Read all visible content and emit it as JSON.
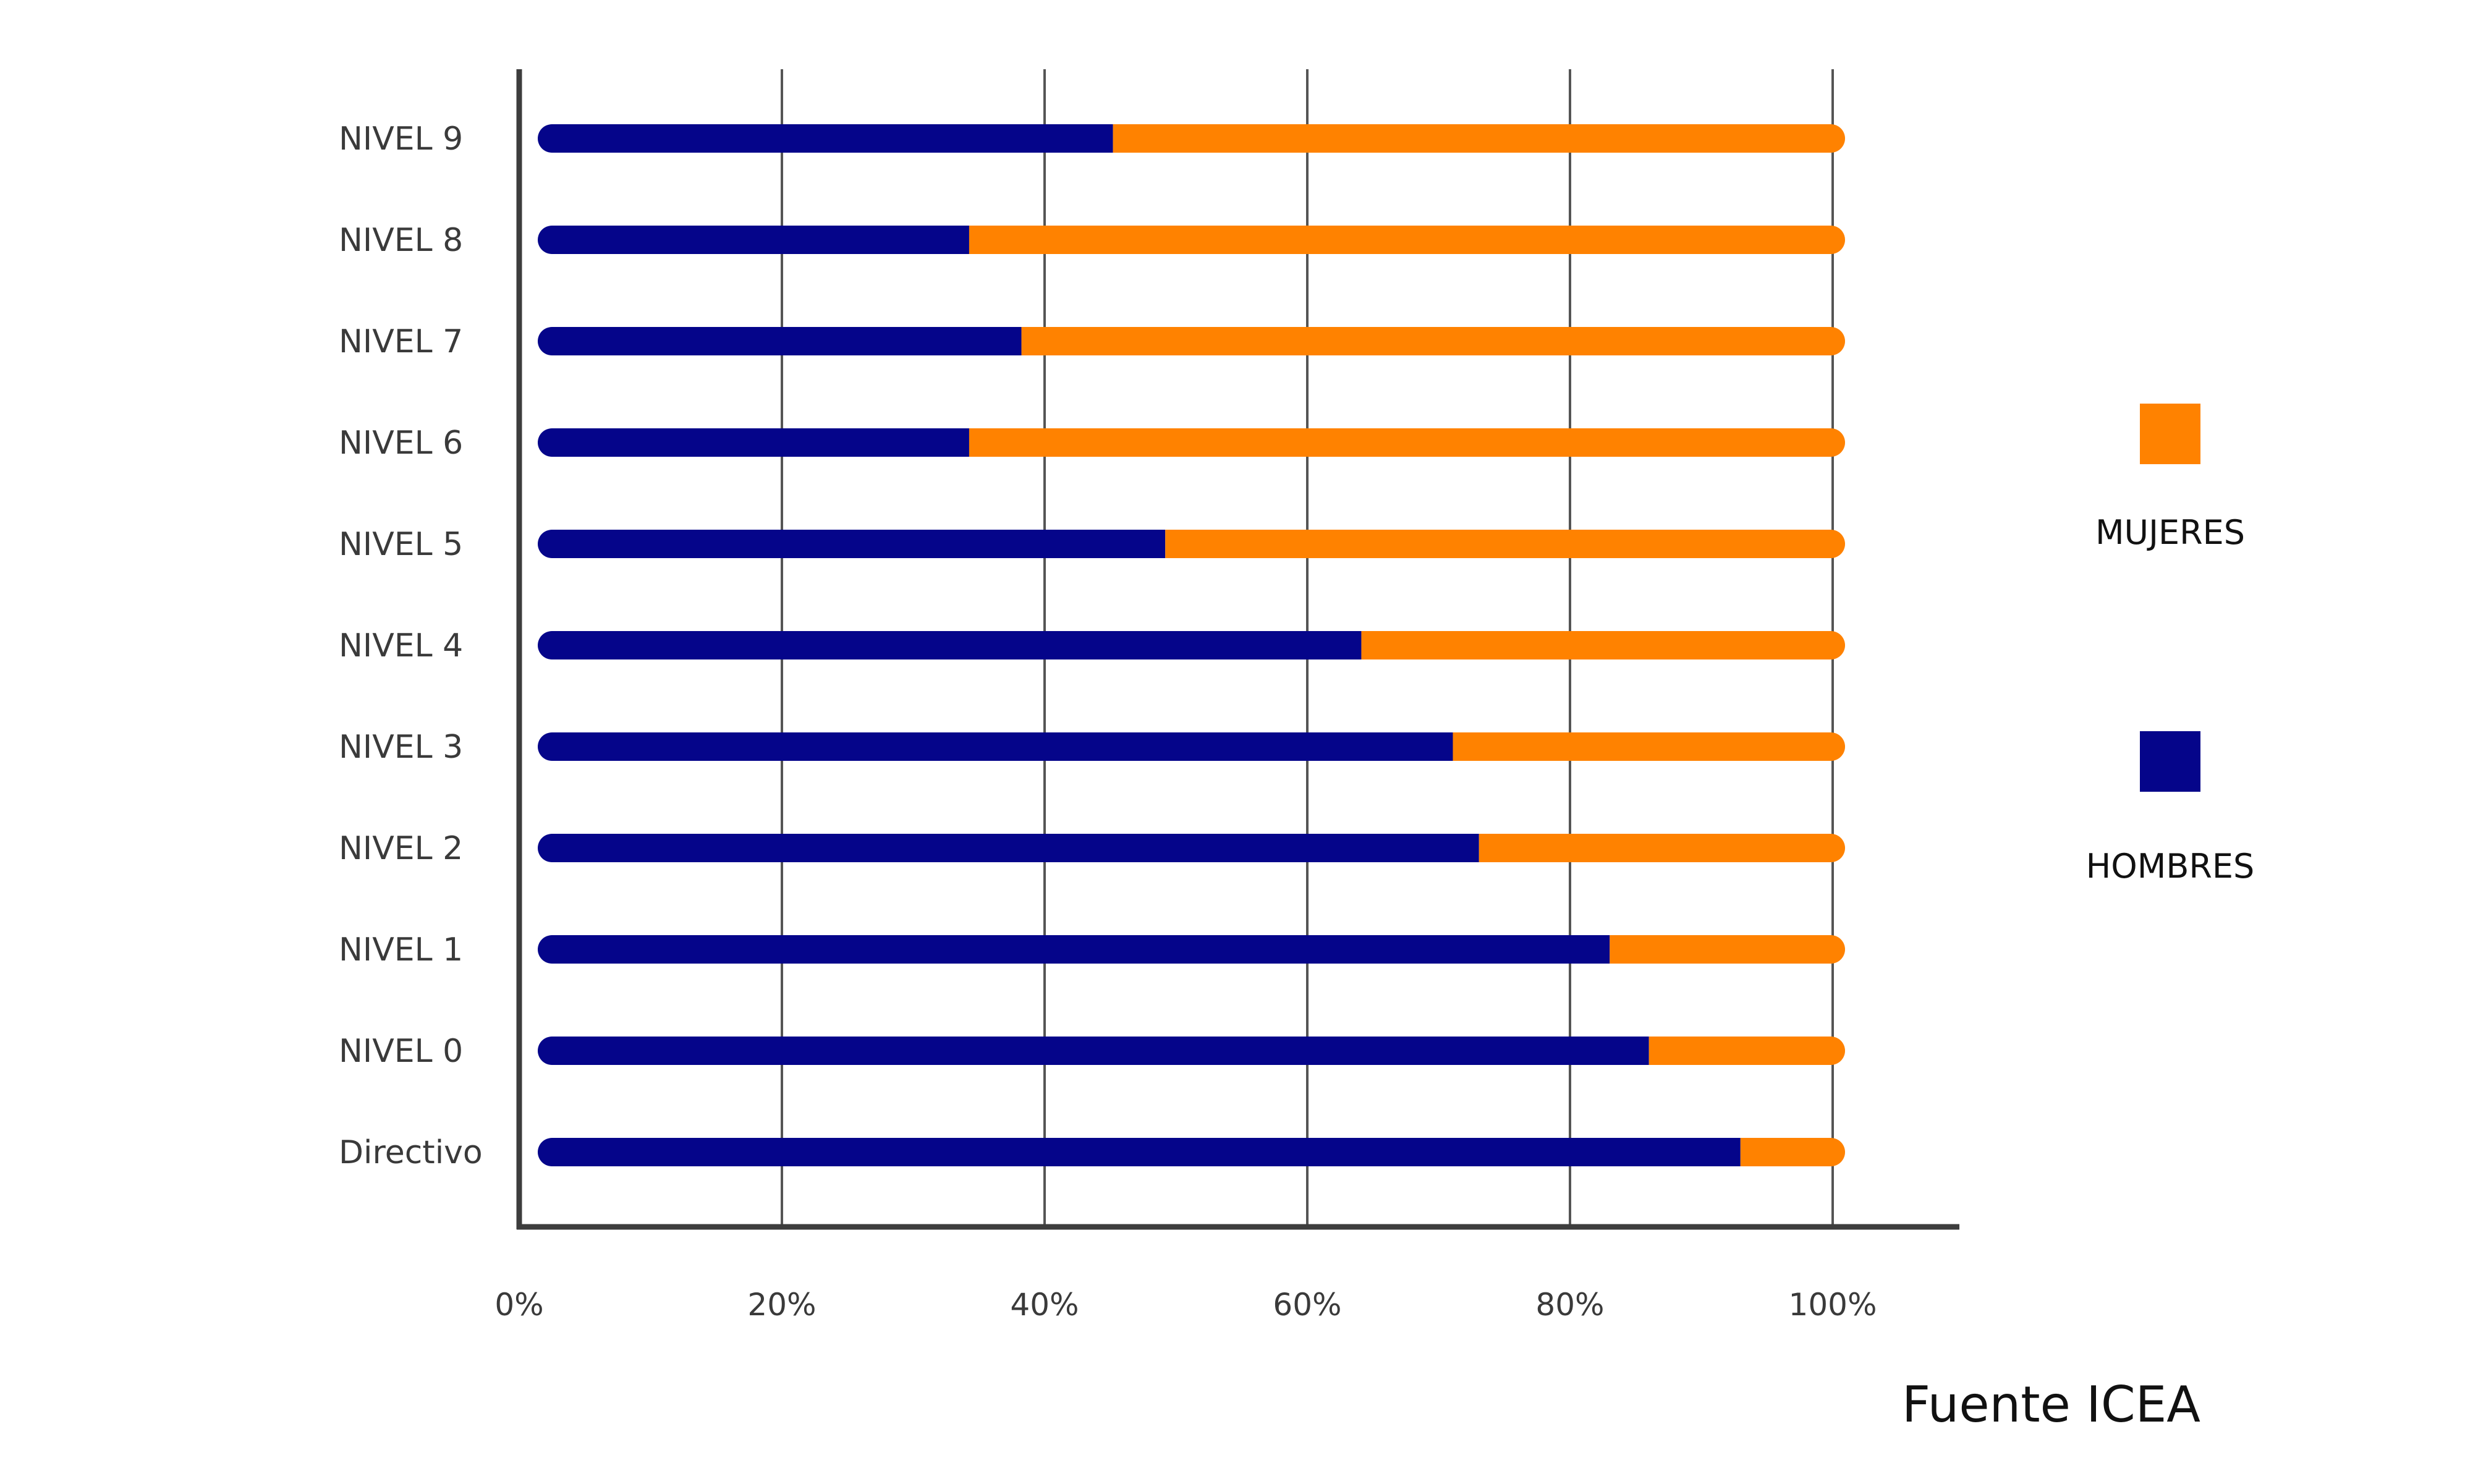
{
  "chart_data": {
    "type": "bar",
    "orientation": "horizontal",
    "stacked": true,
    "categories": [
      "NIVEL 9",
      "NIVEL 8",
      "NIVEL 7",
      "NIVEL 6",
      "NIVEL 5",
      "NIVEL 4",
      "NIVEL 3",
      "NIVEL 2",
      "NIVEL 1",
      "NIVEL 0",
      "Directivo"
    ],
    "series": [
      {
        "name": "HOMBRES",
        "color": "#05058a",
        "values": [
          44,
          33,
          37,
          33,
          48,
          63,
          70,
          72,
          82,
          85,
          92
        ]
      },
      {
        "name": "MUJERES",
        "color": "#ff8200",
        "values": [
          56,
          67,
          63,
          67,
          52,
          37,
          30,
          28,
          18,
          15,
          8
        ]
      }
    ],
    "x_ticks": [
      "0%",
      "20%",
      "40%",
      "60%",
      "80%",
      "100%"
    ],
    "xlim": [
      0,
      100
    ],
    "grid": true,
    "legend_position": "right",
    "legend": [
      {
        "name": "MUJERES",
        "color": "#ff8200"
      },
      {
        "name": "HOMBRES",
        "color": "#05058a"
      }
    ],
    "source": "Fuente ICEA"
  }
}
